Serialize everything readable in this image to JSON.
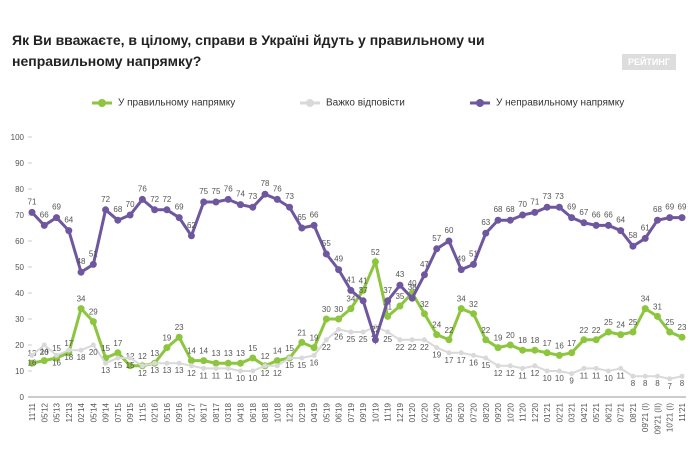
{
  "chart_data": {
    "type": "line",
    "title": "Як Ви вважаєте, в цілому, справи в Україні йдуть у правильному чи неправильному напрямку?",
    "logo": "РЕЙТИНГ",
    "categories": [
      "11'11",
      "05'12",
      "05'13",
      "12'13",
      "02'14",
      "05'14",
      "09'14",
      "07'15",
      "09'15",
      "11'15",
      "02'16",
      "05'16",
      "09'16",
      "02'17",
      "06'17",
      "08'17",
      "03'18",
      "04'18",
      "06'18",
      "08'18",
      "10'18",
      "12'18",
      "02'19",
      "04'19",
      "05'19",
      "06'19",
      "07'19",
      "09'19",
      "10'19",
      "11'19",
      "12'19",
      "01'20",
      "02'20",
      "04'20",
      "05'20",
      "06'20",
      "07'20",
      "08'20",
      "09'20",
      "10'20",
      "11'20",
      "12'20",
      "01'21",
      "02'21",
      "03'21",
      "04'21",
      "05'21",
      "06'21",
      "07'21",
      "08'21",
      "09'21 (I)",
      "09'21 (II)",
      "10'21 (I)",
      "11'21"
    ],
    "series": [
      {
        "name": "У правильному напрямку",
        "color": "#8cc63f",
        "values": [
          13,
          14,
          15,
          17,
          34,
          29,
          15,
          17,
          12,
          12,
          13,
          19,
          23,
          14,
          14,
          13,
          13,
          13,
          15,
          12,
          14,
          15,
          21,
          19,
          30,
          30,
          34,
          41,
          52,
          31,
          35,
          40,
          32,
          24,
          22,
          34,
          32,
          22,
          19,
          20,
          18,
          18,
          17,
          16,
          17,
          22,
          22,
          25,
          24,
          25,
          34,
          31,
          25,
          23
        ]
      },
      {
        "name": "Важко відповісти",
        "color": "#d9d9d9",
        "values": [
          16,
          20,
          16,
          18,
          18,
          20,
          13,
          15,
          15,
          12,
          13,
          13,
          13,
          12,
          11,
          11,
          11,
          10,
          10,
          12,
          12,
          15,
          15,
          16,
          22,
          26,
          25,
          25,
          27,
          25,
          22,
          22,
          22,
          19,
          17,
          17,
          16,
          15,
          12,
          12,
          11,
          12,
          10,
          10,
          9,
          11,
          11,
          10,
          11,
          8,
          8,
          8,
          7,
          8
        ]
      },
      {
        "name": "У неправильному напрямку",
        "color": "#6f57a0",
        "values": [
          71,
          66,
          69,
          64,
          48,
          51,
          72,
          68,
          70,
          76,
          72,
          72,
          69,
          62,
          75,
          75,
          76,
          74,
          73,
          78,
          76,
          73,
          65,
          66,
          55,
          49,
          41,
          37,
          22,
          37,
          43,
          38,
          47,
          57,
          60,
          49,
          51,
          63,
          68,
          68,
          70,
          71,
          73,
          73,
          69,
          67,
          66,
          66,
          64,
          58,
          61,
          68,
          69,
          69
        ]
      }
    ],
    "ylim": [
      0,
      100
    ],
    "yticks": [
      0,
      10,
      20,
      30,
      40,
      50,
      60,
      70,
      80,
      90,
      100
    ]
  }
}
